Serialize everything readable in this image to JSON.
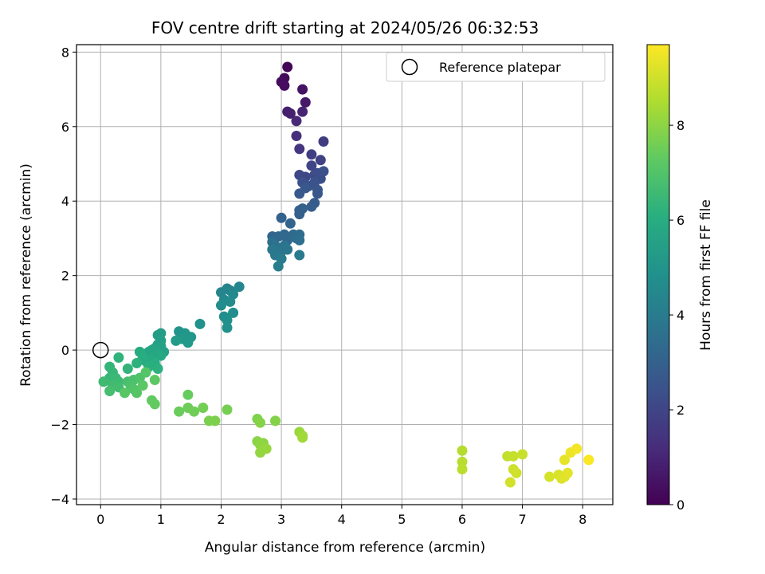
{
  "chart_data": {
    "type": "scatter",
    "title": "FOV centre drift starting at 2024/05/26 06:32:53",
    "xlabel": "Angular distance from reference (arcmin)",
    "ylabel": "Rotation from reference (arcmin)",
    "xlim": [
      -0.4,
      8.5
    ],
    "ylim": [
      -4.15,
      8.2
    ],
    "xticks": [
      0,
      1,
      2,
      3,
      4,
      5,
      6,
      7,
      8
    ],
    "yticks": [
      -4,
      -2,
      0,
      2,
      4,
      6,
      8
    ],
    "xtick_labels": [
      "0",
      "1",
      "2",
      "3",
      "4",
      "5",
      "6",
      "7",
      "8"
    ],
    "ytick_labels": [
      "−4",
      "−2",
      "0",
      "2",
      "4",
      "6",
      "8"
    ],
    "grid": true,
    "legend": {
      "placement": "top-right",
      "label": "Reference platepar"
    },
    "reference_point": {
      "x": 0,
      "y": 0
    },
    "colorbar": {
      "label": "Hours from first FF file",
      "colormap": "viridis",
      "range": [
        0,
        9.7
      ],
      "ticks": [
        0,
        2,
        4,
        6,
        8
      ],
      "tick_labels": [
        "0",
        "2",
        "4",
        "6",
        "8"
      ]
    },
    "series": [
      {
        "points": [
          [
            3.1,
            7.6,
            0.1
          ],
          [
            3.05,
            7.3,
            0.2
          ],
          [
            3.0,
            7.2,
            0.3
          ],
          [
            3.05,
            7.1,
            0.35
          ],
          [
            3.35,
            7.0,
            0.5
          ],
          [
            3.4,
            6.65,
            0.65
          ],
          [
            3.1,
            6.4,
            0.8
          ],
          [
            3.15,
            6.35,
            0.85
          ],
          [
            3.35,
            6.4,
            0.95
          ],
          [
            3.25,
            6.15,
            1.1
          ],
          [
            3.25,
            5.75,
            1.3
          ],
          [
            3.3,
            5.4,
            1.5
          ],
          [
            3.7,
            5.6,
            1.7
          ],
          [
            3.5,
            5.25,
            1.8
          ],
          [
            3.65,
            5.1,
            1.9
          ],
          [
            3.5,
            4.95,
            2.0
          ],
          [
            3.3,
            4.7,
            2.05
          ],
          [
            3.4,
            4.65,
            2.1
          ],
          [
            3.55,
            4.7,
            2.2
          ],
          [
            3.6,
            4.75,
            2.25
          ],
          [
            3.65,
            4.6,
            2.3
          ],
          [
            3.7,
            4.8,
            2.35
          ],
          [
            3.35,
            4.5,
            2.4
          ],
          [
            3.45,
            4.4,
            2.45
          ],
          [
            3.55,
            4.5,
            2.5
          ],
          [
            3.6,
            4.3,
            2.55
          ],
          [
            3.6,
            4.2,
            2.6
          ],
          [
            3.4,
            4.35,
            2.65
          ],
          [
            3.3,
            4.2,
            2.7
          ],
          [
            3.55,
            3.95,
            2.8
          ],
          [
            3.5,
            3.85,
            2.85
          ],
          [
            3.3,
            3.75,
            2.9
          ],
          [
            3.3,
            3.65,
            2.95
          ],
          [
            3.35,
            3.8,
            3.0
          ],
          [
            3.0,
            3.55,
            3.05
          ],
          [
            3.15,
            3.4,
            3.1
          ],
          [
            2.85,
            3.05,
            3.15
          ],
          [
            2.95,
            3.05,
            3.2
          ],
          [
            3.05,
            3.1,
            3.25
          ],
          [
            3.1,
            2.95,
            3.3
          ],
          [
            3.2,
            3.1,
            3.35
          ],
          [
            3.3,
            3.1,
            3.4
          ],
          [
            3.25,
            3.0,
            3.45
          ],
          [
            3.3,
            2.95,
            3.5
          ],
          [
            2.85,
            2.9,
            3.55
          ],
          [
            2.9,
            2.8,
            3.6
          ],
          [
            2.95,
            2.75,
            3.65
          ],
          [
            3.05,
            2.8,
            3.7
          ],
          [
            3.0,
            2.65,
            3.75
          ],
          [
            3.1,
            2.7,
            3.8
          ],
          [
            2.85,
            2.7,
            3.85
          ],
          [
            2.9,
            2.55,
            3.9
          ],
          [
            3.3,
            2.55,
            3.95
          ],
          [
            3.0,
            2.45,
            4.0
          ],
          [
            2.95,
            2.25,
            4.05
          ],
          [
            2.1,
            1.65,
            4.3
          ],
          [
            2.15,
            1.6,
            4.35
          ],
          [
            2.0,
            1.55,
            4.4
          ],
          [
            2.3,
            1.7,
            4.45
          ],
          [
            2.2,
            1.5,
            4.5
          ],
          [
            2.05,
            1.35,
            4.55
          ],
          [
            2.15,
            1.3,
            4.6
          ],
          [
            2.0,
            1.2,
            4.65
          ],
          [
            2.2,
            1.0,
            4.7
          ],
          [
            2.05,
            0.9,
            4.75
          ],
          [
            2.1,
            0.8,
            4.8
          ],
          [
            2.1,
            0.6,
            4.85
          ],
          [
            1.65,
            0.7,
            4.9
          ],
          [
            1.3,
            0.5,
            5.0
          ],
          [
            1.4,
            0.45,
            5.05
          ],
          [
            1.5,
            0.35,
            5.1
          ],
          [
            1.35,
            0.3,
            5.15
          ],
          [
            1.45,
            0.2,
            5.2
          ],
          [
            1.25,
            0.25,
            5.25
          ],
          [
            1.0,
            0.45,
            5.3
          ],
          [
            0.95,
            0.4,
            5.35
          ],
          [
            1.0,
            0.25,
            5.4
          ],
          [
            0.95,
            0.15,
            5.45
          ],
          [
            1.0,
            0.1,
            5.5
          ],
          [
            1.05,
            -0.05,
            5.55
          ],
          [
            0.9,
            0.05,
            5.6
          ],
          [
            0.85,
            0.0,
            5.65
          ],
          [
            0.8,
            -0.05,
            5.7
          ],
          [
            0.95,
            -0.1,
            5.75
          ],
          [
            1.0,
            -0.15,
            5.8
          ],
          [
            0.85,
            -0.25,
            5.85
          ],
          [
            0.75,
            -0.3,
            5.9
          ],
          [
            0.65,
            -0.05,
            5.95
          ],
          [
            0.7,
            -0.2,
            6.0
          ],
          [
            0.9,
            -0.35,
            6.05
          ],
          [
            0.8,
            -0.45,
            6.1
          ],
          [
            0.95,
            -0.5,
            6.15
          ],
          [
            0.6,
            -0.35,
            6.2
          ],
          [
            0.3,
            -0.2,
            6.25
          ],
          [
            0.45,
            -0.5,
            6.3
          ],
          [
            0.15,
            -0.45,
            6.35
          ],
          [
            0.2,
            -0.6,
            6.4
          ],
          [
            0.15,
            -0.75,
            6.45
          ],
          [
            0.25,
            -0.75,
            6.5
          ],
          [
            0.3,
            -0.85,
            6.55
          ],
          [
            0.05,
            -0.85,
            6.6
          ],
          [
            0.2,
            -0.95,
            6.65
          ],
          [
            0.3,
            -1.0,
            6.7
          ],
          [
            0.15,
            -1.1,
            6.75
          ],
          [
            0.45,
            -0.85,
            6.8
          ],
          [
            0.55,
            -0.8,
            6.85
          ],
          [
            0.5,
            -0.95,
            6.9
          ],
          [
            0.65,
            -0.75,
            6.95
          ],
          [
            0.55,
            -1.05,
            7.0
          ],
          [
            0.75,
            -0.6,
            7.05
          ],
          [
            0.6,
            -1.15,
            7.1
          ],
          [
            0.4,
            -1.15,
            7.15
          ],
          [
            0.7,
            -0.95,
            7.2
          ],
          [
            0.9,
            -0.8,
            7.25
          ],
          [
            0.85,
            -1.35,
            7.3
          ],
          [
            0.9,
            -1.45,
            7.35
          ],
          [
            1.45,
            -1.2,
            7.4
          ],
          [
            1.3,
            -1.65,
            7.45
          ],
          [
            1.45,
            -1.55,
            7.5
          ],
          [
            1.55,
            -1.65,
            7.55
          ],
          [
            1.7,
            -1.55,
            7.6
          ],
          [
            2.1,
            -1.6,
            7.65
          ],
          [
            1.8,
            -1.9,
            7.7
          ],
          [
            1.9,
            -1.9,
            7.75
          ],
          [
            2.6,
            -1.85,
            7.8
          ],
          [
            2.9,
            -1.9,
            7.85
          ],
          [
            2.65,
            -1.95,
            7.9
          ],
          [
            2.6,
            -2.45,
            7.95
          ],
          [
            2.7,
            -2.5,
            8.0
          ],
          [
            2.65,
            -2.55,
            8.05
          ],
          [
            2.65,
            -2.75,
            8.1
          ],
          [
            2.75,
            -2.65,
            8.15
          ],
          [
            3.3,
            -2.2,
            8.2
          ],
          [
            3.35,
            -2.3,
            8.25
          ],
          [
            3.35,
            -2.35,
            8.3
          ],
          [
            6.0,
            -2.7,
            8.6
          ],
          [
            6.0,
            -3.0,
            8.65
          ],
          [
            6.0,
            -3.2,
            8.7
          ],
          [
            6.75,
            -2.85,
            8.8
          ],
          [
            6.85,
            -2.85,
            8.85
          ],
          [
            7.0,
            -2.8,
            8.9
          ],
          [
            6.85,
            -3.2,
            8.95
          ],
          [
            6.9,
            -3.3,
            9.0
          ],
          [
            6.8,
            -3.55,
            9.05
          ],
          [
            7.45,
            -3.4,
            9.1
          ],
          [
            7.6,
            -3.35,
            9.15
          ],
          [
            7.65,
            -3.45,
            9.2
          ],
          [
            7.7,
            -3.4,
            9.25
          ],
          [
            7.75,
            -3.3,
            9.3
          ],
          [
            7.7,
            -2.95,
            9.35
          ],
          [
            7.8,
            -2.75,
            9.45
          ],
          [
            7.9,
            -2.65,
            9.55
          ],
          [
            8.1,
            -2.95,
            9.65
          ]
        ]
      }
    ]
  },
  "colors": {
    "grid": "#b0b0b0",
    "axes": "#000000",
    "background": "#ffffff"
  }
}
